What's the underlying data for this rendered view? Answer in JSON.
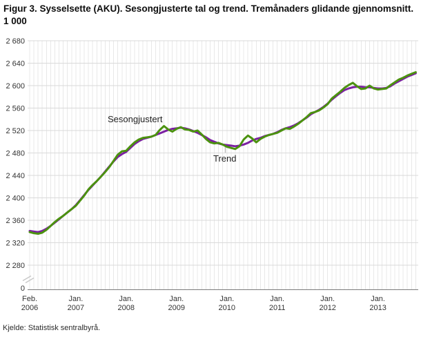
{
  "source": "Kjelde: Statistisk sentralbyrå.",
  "colors": {
    "sesongjustert_line": "#4b920f",
    "trend_line": "#7b1fa2",
    "grid_vertical": "#e8e8e8",
    "grid_horizontal": "#d9d9d9",
    "axis_line": "#7a7a7a",
    "tick_text": "#333333",
    "break_mark": "#c8c8c8",
    "leader_line": "#bdbdbd"
  },
  "chart_data": {
    "type": "line",
    "title": "Figur 3. Sysselsette (AKU). Sesongjusterte tal og trend. Tremånaders glidande gjennomsnitt. 1 000",
    "xlabel": "",
    "ylabel": "",
    "legend_position": "inline-annotations",
    "grid": true,
    "y_axis": {
      "ylim": [
        2280,
        2680
      ],
      "tick_step": 40,
      "ticks": [
        2680,
        2640,
        2600,
        2560,
        2520,
        2480,
        2440,
        2400,
        2360,
        2320,
        2280
      ],
      "tick_labels": [
        "2 680",
        "2 640",
        "2 600",
        "2 560",
        "2 520",
        "2 480",
        "2 440",
        "2 400",
        "2 360",
        "2 320",
        "2 280"
      ],
      "zero_label": "0",
      "axis_break": true
    },
    "x_axis": {
      "frequency": "monthly",
      "total_months": 93,
      "minor_gridline_every_month": true,
      "ticks": [
        {
          "month_index": 0,
          "line1": "Feb.",
          "line2": "2006"
        },
        {
          "month_index": 11,
          "line1": "Jan.",
          "line2": "2007"
        },
        {
          "month_index": 23,
          "line1": "Jan.",
          "line2": "2008"
        },
        {
          "month_index": 35,
          "line1": "Jan.",
          "line2": "2009"
        },
        {
          "month_index": 47,
          "line1": "Jan.",
          "line2": "2010"
        },
        {
          "month_index": 59,
          "line1": "Jan.",
          "line2": "2011"
        },
        {
          "month_index": 71,
          "line1": "Jan.",
          "line2": "2012"
        },
        {
          "month_index": 83,
          "line1": "Jan.",
          "line2": "2013"
        }
      ]
    },
    "series": [
      {
        "name": "Sesongjustert",
        "color": "#4b920f",
        "values": [
          2339,
          2337,
          2336,
          2338,
          2343,
          2350,
          2357,
          2363,
          2368,
          2374,
          2380,
          2386,
          2395,
          2404,
          2415,
          2423,
          2430,
          2438,
          2446,
          2455,
          2466,
          2477,
          2483,
          2484,
          2492,
          2499,
          2504,
          2507,
          2508,
          2509,
          2512,
          2521,
          2528,
          2522,
          2518,
          2523,
          2526,
          2522,
          2521,
          2518,
          2520,
          2513,
          2505,
          2499,
          2497,
          2498,
          2495,
          2491,
          2489,
          2487,
          2492,
          2504,
          2511,
          2506,
          2499,
          2505,
          2509,
          2512,
          2514,
          2516,
          2520,
          2524,
          2523,
          2527,
          2532,
          2538,
          2544,
          2551,
          2553,
          2556,
          2561,
          2567,
          2577,
          2583,
          2589,
          2596,
          2601,
          2605,
          2599,
          2594,
          2595,
          2600,
          2595,
          2593,
          2594,
          2595,
          2601,
          2606,
          2611,
          2614,
          2618,
          2621,
          2624
        ]
      },
      {
        "name": "Trend",
        "color": "#7b1fa2",
        "values": [
          2341,
          2340,
          2339,
          2341,
          2345,
          2350,
          2356,
          2362,
          2368,
          2374,
          2380,
          2387,
          2396,
          2405,
          2414,
          2422,
          2430,
          2438,
          2447,
          2456,
          2465,
          2473,
          2478,
          2482,
          2489,
          2496,
          2501,
          2505,
          2507,
          2509,
          2512,
          2515,
          2518,
          2521,
          2523,
          2524,
          2525,
          2524,
          2522,
          2519,
          2516,
          2512,
          2508,
          2503,
          2500,
          2497,
          2495,
          2494,
          2493,
          2492,
          2493,
          2495,
          2498,
          2502,
          2505,
          2507,
          2510,
          2512,
          2514,
          2517,
          2521,
          2524,
          2526,
          2529,
          2533,
          2538,
          2543,
          2549,
          2553,
          2557,
          2562,
          2568,
          2575,
          2581,
          2587,
          2592,
          2595,
          2597,
          2598,
          2598,
          2597,
          2597,
          2596,
          2595,
          2595,
          2596,
          2599,
          2604,
          2608,
          2612,
          2616,
          2619,
          2622
        ]
      }
    ]
  }
}
